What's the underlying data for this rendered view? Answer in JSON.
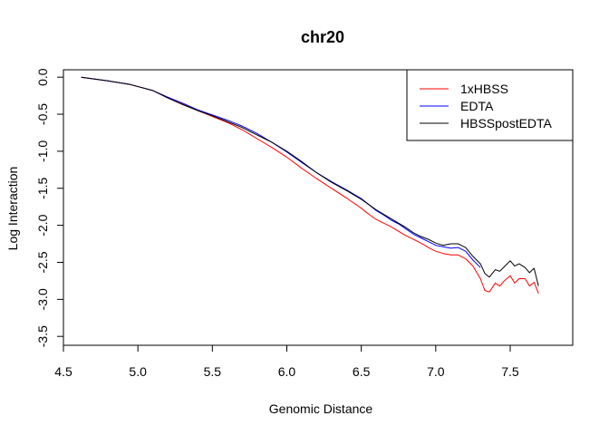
{
  "chart_data": {
    "type": "line",
    "title": "chr20",
    "xlabel": "Genomic Distance",
    "ylabel": "Log Interaction",
    "xlim": [
      4.5,
      7.92
    ],
    "ylim": [
      -3.62,
      0.1
    ],
    "xticks": [
      "4.5",
      "5.0",
      "5.5",
      "6.0",
      "6.5",
      "7.0",
      "7.5"
    ],
    "yticks": [
      "0.0",
      "-0.5",
      "-1.0",
      "-1.5",
      "-2.0",
      "-2.5",
      "-3.0",
      "-3.5"
    ],
    "grid": false,
    "legend_position": "top-right",
    "series": [
      {
        "name": "1xHBSS",
        "color": "#ff0000",
        "x": [
          4.62,
          4.8,
          4.95,
          5.1,
          5.2,
          5.3,
          5.4,
          5.5,
          5.6,
          5.7,
          5.8,
          5.9,
          6.0,
          6.1,
          6.2,
          6.3,
          6.4,
          6.5,
          6.55,
          6.6,
          6.65,
          6.7,
          6.75,
          6.8,
          6.85,
          6.9,
          6.95,
          7.0,
          7.05,
          7.1,
          7.15,
          7.2,
          7.25,
          7.3,
          7.33,
          7.36,
          7.4,
          7.43,
          7.46,
          7.5,
          7.53,
          7.56,
          7.6,
          7.63,
          7.66,
          7.69
        ],
        "values": [
          0.0,
          -0.05,
          -0.1,
          -0.18,
          -0.27,
          -0.36,
          -0.45,
          -0.53,
          -0.61,
          -0.71,
          -0.83,
          -0.95,
          -1.08,
          -1.23,
          -1.37,
          -1.5,
          -1.63,
          -1.77,
          -1.85,
          -1.92,
          -1.97,
          -2.02,
          -2.08,
          -2.14,
          -2.19,
          -2.24,
          -2.3,
          -2.35,
          -2.38,
          -2.4,
          -2.4,
          -2.45,
          -2.55,
          -2.72,
          -2.88,
          -2.9,
          -2.78,
          -2.82,
          -2.75,
          -2.68,
          -2.78,
          -2.72,
          -2.72,
          -2.82,
          -2.77,
          -2.92
        ]
      },
      {
        "name": "EDTA",
        "color": "#0000ff",
        "x": [
          4.62,
          4.8,
          4.95,
          5.1,
          5.2,
          5.3,
          5.4,
          5.5,
          5.6,
          5.7,
          5.8,
          5.9,
          6.0,
          6.1,
          6.2,
          6.3,
          6.4,
          6.5,
          6.55,
          6.6,
          6.65,
          6.7,
          6.75,
          6.8,
          6.85,
          6.9,
          6.95,
          7.0,
          7.05,
          7.1,
          7.15,
          7.2,
          7.25,
          7.3
        ],
        "values": [
          0.0,
          -0.05,
          -0.1,
          -0.18,
          -0.27,
          -0.35,
          -0.44,
          -0.51,
          -0.58,
          -0.66,
          -0.76,
          -0.88,
          -1.01,
          -1.15,
          -1.29,
          -1.41,
          -1.52,
          -1.64,
          -1.72,
          -1.8,
          -1.86,
          -1.93,
          -1.98,
          -2.05,
          -2.12,
          -2.17,
          -2.22,
          -2.27,
          -2.29,
          -2.31,
          -2.3,
          -2.35,
          -2.47,
          -2.57
        ]
      },
      {
        "name": "HBSSpostEDTA",
        "color": "#000000",
        "x": [
          4.62,
          4.8,
          4.95,
          5.1,
          5.2,
          5.3,
          5.4,
          5.5,
          5.6,
          5.7,
          5.8,
          5.9,
          6.0,
          6.1,
          6.2,
          6.3,
          6.4,
          6.5,
          6.55,
          6.6,
          6.65,
          6.7,
          6.75,
          6.8,
          6.85,
          6.9,
          6.95,
          7.0,
          7.05,
          7.1,
          7.15,
          7.2,
          7.25,
          7.3,
          7.33,
          7.36,
          7.4,
          7.43,
          7.46,
          7.5,
          7.53,
          7.56,
          7.6,
          7.63,
          7.66,
          7.69
        ],
        "values": [
          0.0,
          -0.05,
          -0.1,
          -0.18,
          -0.28,
          -0.37,
          -0.45,
          -0.52,
          -0.6,
          -0.68,
          -0.78,
          -0.88,
          -1.0,
          -1.14,
          -1.29,
          -1.42,
          -1.53,
          -1.65,
          -1.72,
          -1.79,
          -1.85,
          -1.91,
          -1.97,
          -2.03,
          -2.1,
          -2.15,
          -2.19,
          -2.24,
          -2.27,
          -2.25,
          -2.25,
          -2.3,
          -2.42,
          -2.52,
          -2.65,
          -2.7,
          -2.6,
          -2.62,
          -2.56,
          -2.48,
          -2.55,
          -2.52,
          -2.57,
          -2.64,
          -2.58,
          -2.82
        ]
      }
    ]
  }
}
